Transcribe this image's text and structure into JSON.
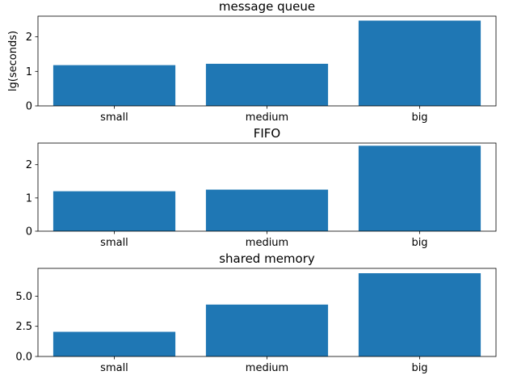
{
  "chart_data": [
    {
      "type": "bar",
      "title": "message queue",
      "ylabel": "lg(seconds)",
      "categories": [
        "small",
        "medium",
        "big"
      ],
      "values": [
        1.18,
        1.22,
        2.47
      ],
      "ylim": [
        0,
        2.6
      ],
      "yticks": [
        0,
        1,
        2
      ],
      "ytick_labels": [
        "0",
        "1",
        "2"
      ]
    },
    {
      "type": "bar",
      "title": "FIFO",
      "ylabel": "",
      "categories": [
        "small",
        "medium",
        "big"
      ],
      "values": [
        1.2,
        1.25,
        2.57
      ],
      "ylim": [
        0,
        2.65
      ],
      "yticks": [
        0,
        1,
        2
      ],
      "ytick_labels": [
        "0",
        "1",
        "2"
      ]
    },
    {
      "type": "bar",
      "title": "shared memory",
      "ylabel": "",
      "categories": [
        "small",
        "medium",
        "big"
      ],
      "values": [
        2.04,
        4.3,
        6.9
      ],
      "ylim": [
        0,
        7.3
      ],
      "yticks": [
        0,
        2.5,
        5
      ],
      "ytick_labels": [
        "0.0",
        "2.5",
        "5.0"
      ]
    }
  ],
  "colors": {
    "bar": "#1f77b4",
    "axis": "#000000"
  }
}
